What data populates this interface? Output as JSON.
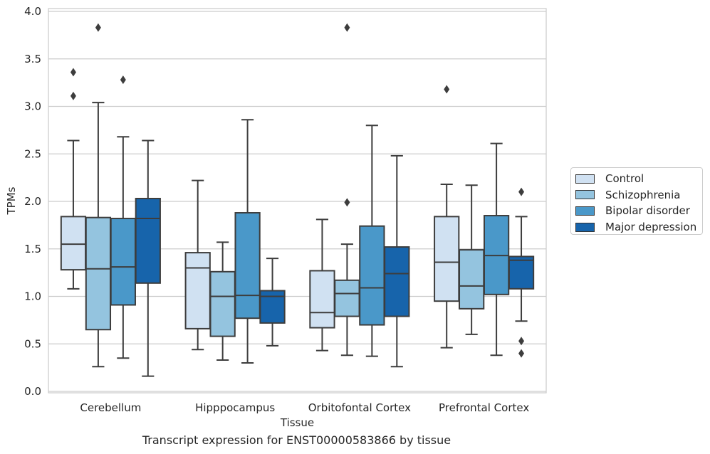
{
  "chart_data": {
    "type": "box",
    "title": "",
    "caption": "Transcript expression for ENST00000583866 by tissue",
    "xlabel": "Tissue",
    "ylabel": "TPMs",
    "ylim": [
      0,
      4.0
    ],
    "yticks": [
      "0.0",
      "0.5",
      "1.0",
      "1.5",
      "2.0",
      "2.5",
      "3.0",
      "3.5",
      "4.0"
    ],
    "grid": true,
    "legend_position": "right",
    "categories": [
      "Cerebellum",
      "Hipppocampus",
      "Orbitofontal Cortex",
      "Prefrontal Cortex"
    ],
    "series": [
      {
        "name": "Control",
        "color": "#d0e1f2",
        "boxes": [
          {
            "whisker_low": 1.08,
            "q1": 1.28,
            "median": 1.55,
            "q3": 1.84,
            "whisker_high": 2.64,
            "outliers": [
              3.11,
              3.36
            ]
          },
          {
            "whisker_low": 0.44,
            "q1": 0.66,
            "median": 1.3,
            "q3": 1.46,
            "whisker_high": 2.22,
            "outliers": []
          },
          {
            "whisker_low": 0.43,
            "q1": 0.67,
            "median": 0.83,
            "q3": 1.27,
            "whisker_high": 1.81,
            "outliers": []
          },
          {
            "whisker_low": 0.46,
            "q1": 0.95,
            "median": 1.36,
            "q3": 1.84,
            "whisker_high": 2.18,
            "outliers": [
              3.18
            ]
          }
        ]
      },
      {
        "name": "Schizophrenia",
        "color": "#94c4df",
        "boxes": [
          {
            "whisker_low": 0.26,
            "q1": 0.65,
            "median": 1.29,
            "q3": 1.83,
            "whisker_high": 3.04,
            "outliers": [
              3.83
            ]
          },
          {
            "whisker_low": 0.33,
            "q1": 0.58,
            "median": 1.0,
            "q3": 1.26,
            "whisker_high": 1.57,
            "outliers": []
          },
          {
            "whisker_low": 0.38,
            "q1": 0.79,
            "median": 1.03,
            "q3": 1.17,
            "whisker_high": 1.55,
            "outliers": [
              1.99,
              3.83
            ]
          },
          {
            "whisker_low": 0.6,
            "q1": 0.87,
            "median": 1.11,
            "q3": 1.49,
            "whisker_high": 2.17,
            "outliers": []
          }
        ]
      },
      {
        "name": "Bipolar disorder",
        "color": "#4a98c9",
        "boxes": [
          {
            "whisker_low": 0.35,
            "q1": 0.91,
            "median": 1.31,
            "q3": 1.82,
            "whisker_high": 2.68,
            "outliers": [
              3.28
            ]
          },
          {
            "whisker_low": 0.3,
            "q1": 0.77,
            "median": 1.01,
            "q3": 1.88,
            "whisker_high": 2.86,
            "outliers": []
          },
          {
            "whisker_low": 0.37,
            "q1": 0.7,
            "median": 1.09,
            "q3": 1.74,
            "whisker_high": 2.8,
            "outliers": []
          },
          {
            "whisker_low": 0.38,
            "q1": 1.02,
            "median": 1.43,
            "q3": 1.85,
            "whisker_high": 2.61,
            "outliers": []
          }
        ]
      },
      {
        "name": "Major depression",
        "color": "#1764ab",
        "boxes": [
          {
            "whisker_low": 0.16,
            "q1": 1.14,
            "median": 1.82,
            "q3": 2.03,
            "whisker_high": 2.64,
            "outliers": []
          },
          {
            "whisker_low": 0.48,
            "q1": 0.72,
            "median": 1.0,
            "q3": 1.06,
            "whisker_high": 1.4,
            "outliers": []
          },
          {
            "whisker_low": 0.26,
            "q1": 0.79,
            "median": 1.24,
            "q3": 1.52,
            "whisker_high": 2.48,
            "outliers": []
          },
          {
            "whisker_low": 0.74,
            "q1": 1.08,
            "median": 1.38,
            "q3": 1.42,
            "whisker_high": 1.84,
            "outliers": [
              2.1,
              0.53,
              0.4
            ]
          }
        ]
      }
    ]
  }
}
